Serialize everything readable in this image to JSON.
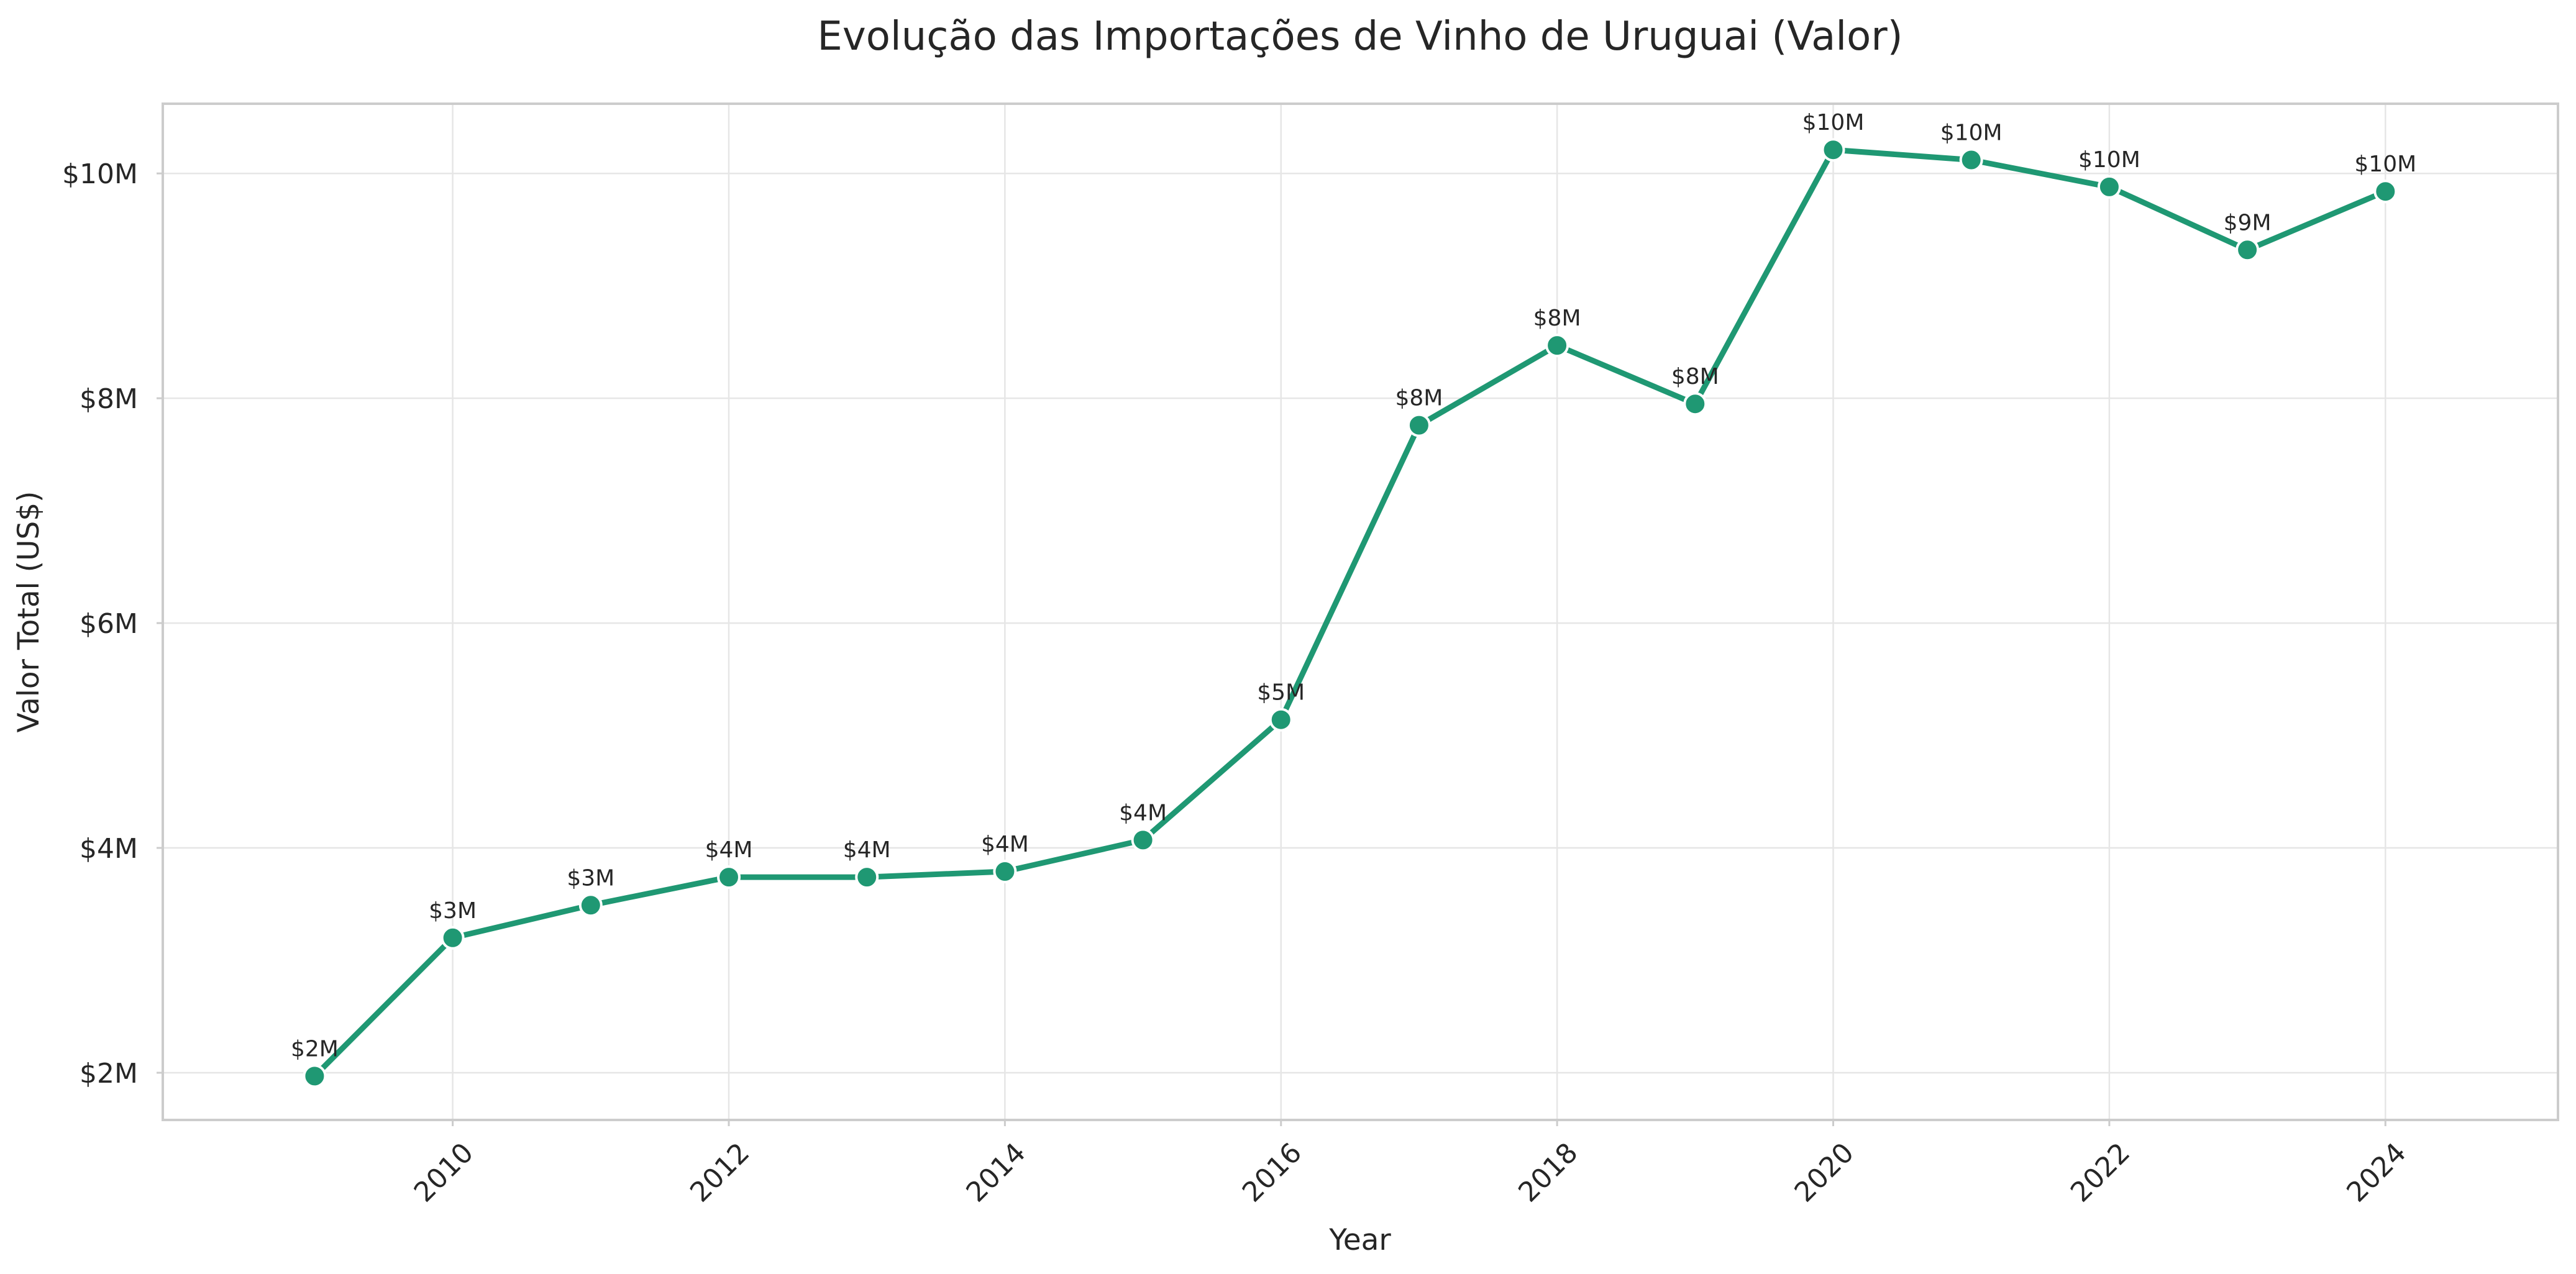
{
  "chart_data": {
    "type": "line",
    "title": "Evolução das Importações de Vinho de Uruguai (Valor)",
    "xlabel": "Year",
    "ylabel": "Valor Total (US$)",
    "x": [
      2009,
      2010,
      2011,
      2012,
      2013,
      2014,
      2015,
      2016,
      2017,
      2018,
      2019,
      2020,
      2021,
      2022,
      2023,
      2024
    ],
    "series": [
      {
        "values": [
          1.97,
          3.2,
          3.49,
          3.74,
          3.74,
          3.79,
          4.07,
          5.14,
          7.76,
          8.47,
          7.95,
          10.21,
          10.12,
          9.88,
          9.32,
          9.84
        ],
        "labels": [
          "$2M",
          "$3M",
          "$3M",
          "$4M",
          "$4M",
          "$4M",
          "$4M",
          "$5M",
          "$8M",
          "$8M",
          "$8M",
          "$10M",
          "$10M",
          "$10M",
          "$9M",
          "$10M"
        ],
        "color": "#1f9873"
      }
    ],
    "xlim": [
      2007.9,
      2025.25
    ],
    "ylim": [
      1.58,
      10.62
    ],
    "xticks": [
      2010,
      2012,
      2014,
      2016,
      2018,
      2020,
      2022,
      2024
    ],
    "xtick_labels": [
      "2010",
      "2012",
      "2014",
      "2016",
      "2018",
      "2020",
      "2022",
      "2024"
    ],
    "yticks": [
      2,
      4,
      6,
      8,
      10
    ],
    "ytick_labels": [
      "$2M",
      "$4M",
      "$6M",
      "$8M",
      "$10M"
    ],
    "y_unit": "US$ millions",
    "grid": true,
    "legend": "none",
    "markers": true
  }
}
